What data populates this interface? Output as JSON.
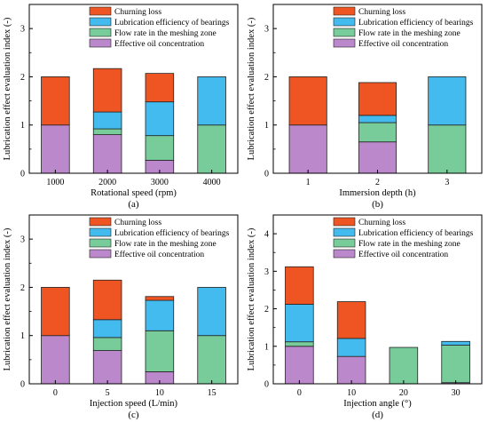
{
  "colors": {
    "Churning loss": "#EE5522",
    "Lubrication efficiency of bearings": "#44BBEE",
    "Flow rate in the meshing zone": "#77CC99",
    "Effective oil concentration": "#BB88CC"
  },
  "chart_data": [
    {
      "type": "bar",
      "stacked": true,
      "caption": "(a)",
      "xlabel": "Rotational speed (rpm)",
      "ylabel": "Lubrication effect evaluation index (-)",
      "categories": [
        "1000",
        "2000",
        "3000",
        "4000"
      ],
      "ylim": [
        0,
        3.5
      ],
      "yticks": [
        0,
        1,
        2,
        3
      ],
      "legend": "top-left",
      "series": [
        {
          "name": "Effective oil concentration",
          "values": [
            1.0,
            0.8,
            0.27,
            0.0
          ]
        },
        {
          "name": "Flow rate in the meshing zone",
          "values": [
            0.0,
            0.12,
            0.51,
            1.0
          ]
        },
        {
          "name": "Lubrication efficiency of bearings",
          "values": [
            0.0,
            0.35,
            0.7,
            1.0
          ]
        },
        {
          "name": "Churning loss",
          "values": [
            1.0,
            0.9,
            0.59,
            0.0
          ]
        }
      ]
    },
    {
      "type": "bar",
      "stacked": true,
      "caption": "(b)",
      "xlabel": "Immersion depth (h)",
      "ylabel": "Lubrication effect evaluation index (-)",
      "categories": [
        "1",
        "2",
        "3"
      ],
      "ylim": [
        0,
        3.5
      ],
      "yticks": [
        0,
        1,
        2,
        3
      ],
      "legend": "top-left",
      "series": [
        {
          "name": "Effective oil concentration",
          "values": [
            1.0,
            0.65,
            0.0
          ]
        },
        {
          "name": "Flow rate in the meshing zone",
          "values": [
            0.0,
            0.4,
            1.0
          ]
        },
        {
          "name": "Lubrication efficiency of bearings",
          "values": [
            0.0,
            0.15,
            1.0
          ]
        },
        {
          "name": "Churning loss",
          "values": [
            1.0,
            0.68,
            0.0
          ]
        }
      ]
    },
    {
      "type": "bar",
      "stacked": true,
      "caption": "(c)",
      "xlabel": "Injection speed (L/min)",
      "ylabel": "Lubrication effect evaluation index (-)",
      "categories": [
        "0",
        "5",
        "10",
        "15"
      ],
      "ylim": [
        0,
        3.5
      ],
      "yticks": [
        0,
        1,
        2,
        3
      ],
      "legend": "top-left",
      "series": [
        {
          "name": "Effective oil concentration",
          "values": [
            1.0,
            0.69,
            0.25,
            0.0
          ]
        },
        {
          "name": "Flow rate in the meshing zone",
          "values": [
            0.0,
            0.27,
            0.85,
            1.0
          ]
        },
        {
          "name": "Lubrication efficiency of bearings",
          "values": [
            0.0,
            0.37,
            0.63,
            1.0
          ]
        },
        {
          "name": "Churning loss",
          "values": [
            1.0,
            0.82,
            0.08,
            0.0
          ]
        }
      ]
    },
    {
      "type": "bar",
      "stacked": true,
      "caption": "(d)",
      "xlabel": "Injection angle (°)",
      "ylabel": "Lubrication effect evaluation index (-)",
      "categories": [
        "0",
        "10",
        "20",
        "30"
      ],
      "ylim": [
        0,
        4.5
      ],
      "yticks": [
        0,
        1,
        2,
        3,
        4
      ],
      "legend": "top-left",
      "series": [
        {
          "name": "Effective oil concentration",
          "values": [
            1.0,
            0.73,
            0.0,
            0.03
          ]
        },
        {
          "name": "Flow rate in the meshing zone",
          "values": [
            0.12,
            0.0,
            0.97,
            1.0
          ]
        },
        {
          "name": "Lubrication efficiency of bearings",
          "values": [
            1.0,
            0.48,
            0.0,
            0.1
          ]
        },
        {
          "name": "Churning loss",
          "values": [
            1.0,
            0.98,
            0.0,
            0.0
          ]
        }
      ]
    }
  ]
}
